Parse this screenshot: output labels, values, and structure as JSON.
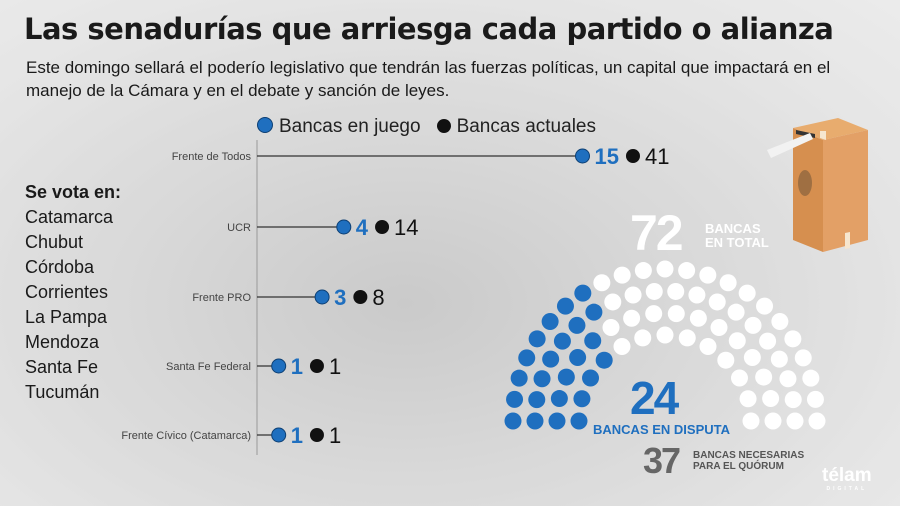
{
  "title": "Las senadurías que arriesga cada partido o alianza",
  "subtitle": "Este domingo sellará el poderío legislativo que tendrán las fuerzas políticas, un capital que impactará en el manejo de la Cámara y en el debate y sanción de leyes.",
  "legend": {
    "in_play": "Bancas en juego",
    "current": "Bancas actuales"
  },
  "colors": {
    "in_play": "#1f6fbf",
    "current": "#111111",
    "seat_other": "#ffffff"
  },
  "votes": {
    "heading": "Se vota en:",
    "provinces": [
      "Catamarca",
      "Chubut",
      "Córdoba",
      "Corrientes",
      "La Pampa",
      "Mendoza",
      "Santa Fe",
      "Tucumán"
    ]
  },
  "chart_data": {
    "type": "lollipop",
    "categories": [
      "Frente de Todos",
      "UCR",
      "Frente PRO",
      "Santa Fe Federal",
      "Frente Cívico (Catamarca)"
    ],
    "series": [
      {
        "name": "Bancas en juego",
        "values": [
          15,
          4,
          3,
          1,
          1
        ]
      },
      {
        "name": "Bancas actuales",
        "values": [
          41,
          14,
          8,
          1,
          1
        ]
      }
    ]
  },
  "hemicycle": {
    "total": "72",
    "total_label_1": "BANCAS",
    "total_label_2": "EN TOTAL",
    "disputed": "24",
    "disputed_label": "BANCAS EN DISPUTA",
    "quorum": "37",
    "quorum_label_1": "BANCAS NECESARIAS",
    "quorum_label_2": "PARA EL QUÓRUM",
    "seats_total": 72,
    "seats_disputed": 24
  },
  "logo": {
    "name": "télam",
    "tag": "DIGITAL"
  }
}
